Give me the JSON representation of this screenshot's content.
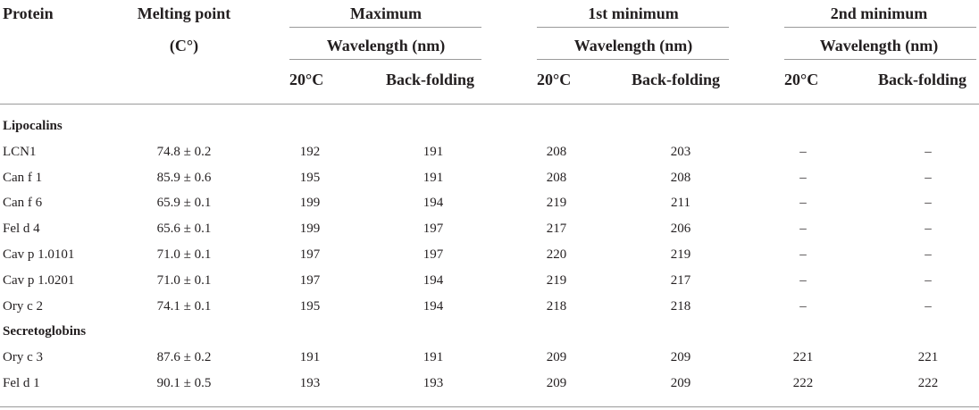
{
  "header": {
    "protein": "Protein",
    "melting_point": "Melting point",
    "melting_unit": "(C°)",
    "groups": [
      "Maximum",
      "1st minimum",
      "2nd minimum"
    ],
    "wavelength": "Wavelength (nm)",
    "sub_20c": "20°C",
    "sub_back": "Back-folding"
  },
  "sections": [
    {
      "title": "Lipocalins",
      "rows": [
        {
          "protein": "LCN1",
          "mp": "74.8 ± 0.2",
          "max20": "192",
          "maxBack": "191",
          "min1_20": "208",
          "min1Back": "203",
          "min2_20": "–",
          "min2Back": "–"
        },
        {
          "protein": "Can f 1",
          "mp": "85.9 ± 0.6",
          "max20": "195",
          "maxBack": "191",
          "min1_20": "208",
          "min1Back": "208",
          "min2_20": "–",
          "min2Back": "–"
        },
        {
          "protein": "Can f 6",
          "mp": "65.9 ± 0.1",
          "max20": "199",
          "maxBack": "194",
          "min1_20": "219",
          "min1Back": "211",
          "min2_20": "–",
          "min2Back": "–"
        },
        {
          "protein": "Fel d 4",
          "mp": "65.6 ± 0.1",
          "max20": "199",
          "maxBack": "197",
          "min1_20": "217",
          "min1Back": "206",
          "min2_20": "–",
          "min2Back": "–"
        },
        {
          "protein": "Cav p 1.0101",
          "mp": "71.0 ± 0.1",
          "max20": "197",
          "maxBack": "197",
          "min1_20": "220",
          "min1Back": "219",
          "min2_20": "–",
          "min2Back": "–"
        },
        {
          "protein": "Cav p 1.0201",
          "mp": "71.0 ± 0.1",
          "max20": "197",
          "maxBack": "194",
          "min1_20": "219",
          "min1Back": "217",
          "min2_20": "–",
          "min2Back": "–"
        },
        {
          "protein": "Ory c 2",
          "mp": "74.1 ± 0.1",
          "max20": "195",
          "maxBack": "194",
          "min1_20": "218",
          "min1Back": "218",
          "min2_20": "–",
          "min2Back": "–"
        }
      ]
    },
    {
      "title": "Secretoglobins",
      "rows": [
        {
          "protein": "Ory c 3",
          "mp": "87.6 ± 0.2",
          "max20": "191",
          "maxBack": "191",
          "min1_20": "209",
          "min1Back": "209",
          "min2_20": "221",
          "min2Back": "221"
        },
        {
          "protein": "Fel d 1",
          "mp": "90.1 ± 0.5",
          "max20": "193",
          "maxBack": "193",
          "min1_20": "209",
          "min1Back": "209",
          "min2_20": "222",
          "min2Back": "222"
        }
      ]
    }
  ]
}
